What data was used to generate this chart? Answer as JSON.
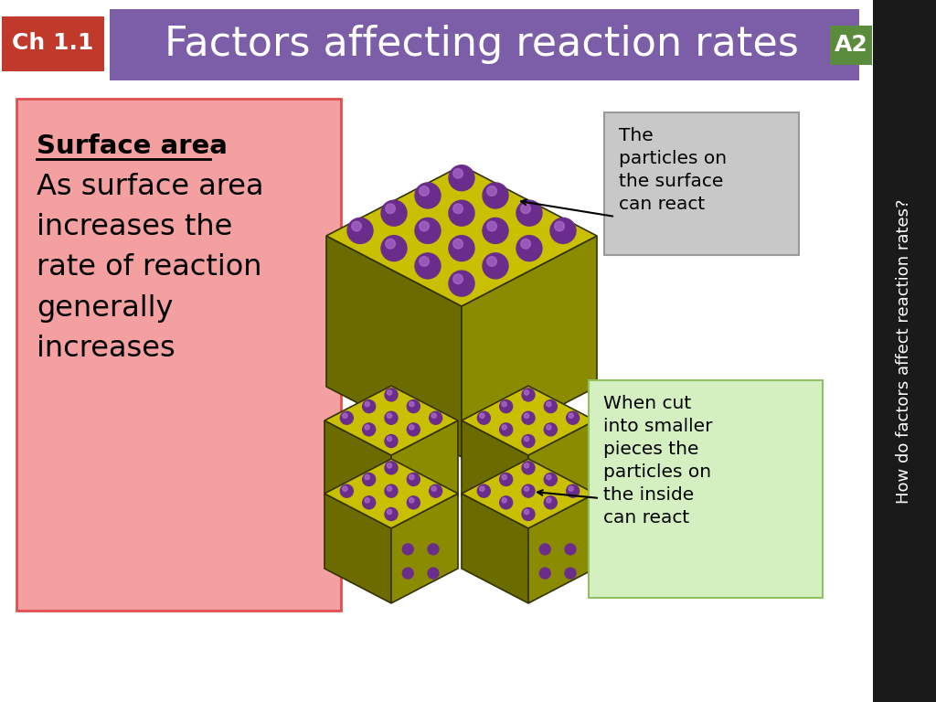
{
  "title": "Factors affecting reaction rates",
  "chapter_label": "Ch 1.1",
  "slide_label": "A2",
  "sidebar_text": "How do factors affect reaction rates?",
  "left_box_title": "Surface area",
  "left_box_body": "As surface area\nincreases the\nrate of reaction\ngenerally\nincreases",
  "callout1": "The\nparticles on\nthe surface\ncan react",
  "callout2": "When cut\ninto smaller\npieces the\nparticles on\nthe inside\ncan react",
  "bg_color": "#ffffff",
  "header_bg": "#7B5EA7",
  "chapter_bg": "#C0392B",
  "chapter_text_color": "#ffffff",
  "slide_label_bg": "#5B8C3E",
  "slide_label_color": "#ffffff",
  "sidebar_bg": "#1a1a1a",
  "sidebar_text_color": "#ffffff",
  "left_box_bg": "#F4A0A0",
  "left_box_border": "#E05050",
  "callout1_bg": "#C8C8C8",
  "callout1_border": "#999999",
  "callout2_bg": "#D4F0C0",
  "callout2_border": "#90C060",
  "cube_top_color": "#C8C000",
  "cube_left_color": "#6B6B00",
  "cube_right_color": "#8B8B00",
  "sphere_color": "#6B2D8B",
  "sphere_highlight": "#B070D0"
}
